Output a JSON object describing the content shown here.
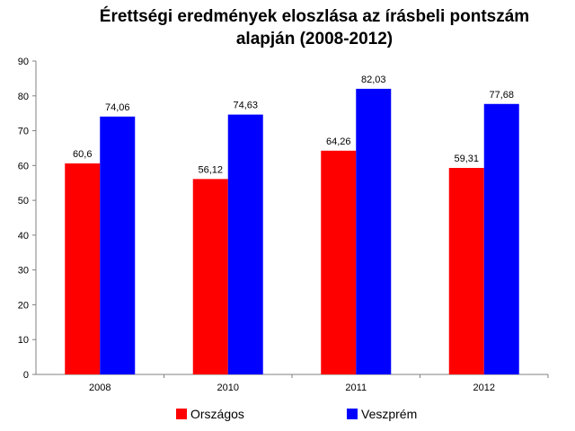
{
  "chart_data": {
    "type": "bar",
    "title_line1": "Érettségi eredmények eloszlása az írásbeli pontszám",
    "title_line2": "alapján (2008-2012)",
    "xlabel": "",
    "ylabel": "",
    "categories": [
      "2008",
      "2010",
      "2011",
      "2012"
    ],
    "series": [
      {
        "name": "Országos",
        "color": "#ff0000",
        "values": [
          60.6,
          56.12,
          64.26,
          59.31
        ],
        "labels": [
          "60,6",
          "56,12",
          "64,26",
          "59,31"
        ]
      },
      {
        "name": "Veszprém",
        "color": "#0000ff",
        "values": [
          74.06,
          74.63,
          82.03,
          77.68
        ],
        "labels": [
          "74,06",
          "74,63",
          "82,03",
          "77,68"
        ]
      }
    ],
    "ylim": [
      0,
      90
    ],
    "yticks": [
      "0",
      "10",
      "20",
      "30",
      "40",
      "50",
      "60",
      "70",
      "80",
      "90"
    ],
    "grid": false,
    "legend_position": "bottom"
  }
}
